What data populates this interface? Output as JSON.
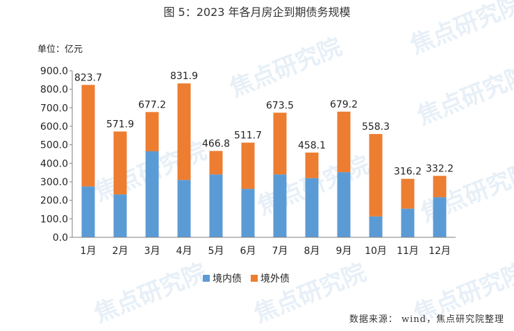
{
  "title": "图 5：2023 年各月房企到期债务规模",
  "unit_label": "单位：亿元",
  "source_note": "数据来源： wind，焦点研究院整理",
  "watermark_text": "焦点研究院",
  "colors": {
    "domestic": "#5b9bd5",
    "overseas": "#ed7d31",
    "axis": "#7f7f7f"
  },
  "chart_data": {
    "type": "bar",
    "stacked": true,
    "categories": [
      "1月",
      "2月",
      "3月",
      "4月",
      "5月",
      "6月",
      "7月",
      "8月",
      "9月",
      "10月",
      "11月",
      "12月"
    ],
    "series": [
      {
        "name": "境内债",
        "values": [
          275,
          232,
          465,
          310,
          340,
          262,
          340,
          320,
          352,
          113,
          155,
          217
        ]
      },
      {
        "name": "境外债",
        "values": [
          548.7,
          339.9,
          212.2,
          521.9,
          126.8,
          249.7,
          333.5,
          138.1,
          327.2,
          445.3,
          161.2,
          115.2
        ]
      }
    ],
    "totals": [
      "823.7",
      "571.9",
      "677.2",
      "831.9",
      "466.8",
      "511.7",
      "673.5",
      "458.1",
      "679.2",
      "558.3",
      "316.2",
      "332.2"
    ],
    "yticks": [
      "0.0",
      "100.0",
      "200.0",
      "300.0",
      "400.0",
      "500.0",
      "600.0",
      "700.0",
      "800.0",
      "900.0"
    ],
    "ylim": [
      0,
      900
    ],
    "legend_position": "bottom",
    "grid": false
  }
}
